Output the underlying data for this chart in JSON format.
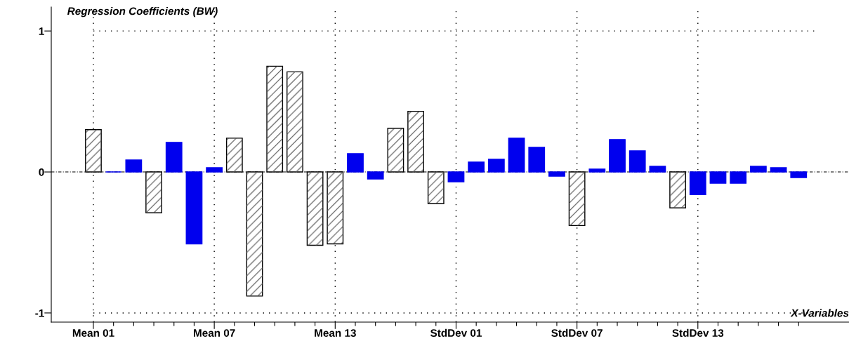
{
  "chart_data": {
    "type": "bar",
    "title": "Regression Coefficients (BW)",
    "xlabel": "X-Variables",
    "categories": [
      "Mean 01",
      null,
      null,
      null,
      null,
      null,
      "Mean 07",
      null,
      null,
      null,
      null,
      null,
      "Mean 13",
      null,
      null,
      null,
      null,
      null,
      "StdDev 01",
      null,
      null,
      null,
      null,
      null,
      "StdDev 07",
      null,
      null,
      null,
      null,
      null,
      "StdDev 13",
      null,
      null,
      null,
      null,
      null
    ],
    "values": [
      0.3,
      0.0,
      0.085,
      -0.29,
      0.21,
      -0.51,
      0.03,
      0.24,
      -0.88,
      0.75,
      0.71,
      -0.52,
      -0.51,
      0.13,
      -0.05,
      0.31,
      0.43,
      -0.225,
      -0.07,
      0.07,
      0.09,
      0.24,
      0.175,
      -0.03,
      -0.38,
      0.02,
      0.23,
      0.15,
      0.04,
      -0.255,
      -0.16,
      -0.08,
      -0.08,
      0.04,
      0.03,
      -0.04
    ],
    "colors": [
      "#ffffff",
      "#0000ee",
      "#0000ee",
      "#ffffff",
      "#0000ee",
      "#0000ee",
      "#0000ee",
      "#ffffff",
      "#ffffff",
      "#ffffff",
      "#ffffff",
      "#ffffff",
      "#ffffff",
      "#0000ee",
      "#0000ee",
      "#ffffff",
      "#ffffff",
      "#ffffff",
      "#0000ee",
      "#0000ee",
      "#0000ee",
      "#0000ee",
      "#0000ee",
      "#0000ee",
      "#ffffff",
      "#0000ee",
      "#0000ee",
      "#0000ee",
      "#0000ee",
      "#ffffff",
      "#0000ee",
      "#0000ee",
      "#0000ee",
      "#0000ee",
      "#0000ee",
      "#0000ee"
    ],
    "ylim": [
      -1.065,
      1.17
    ],
    "yticks": [
      {
        "value": -1,
        "label": "-1"
      },
      0,
      1
    ],
    "ref_lines": [
      {
        "axis": "y",
        "value": 0,
        "color": "#000000",
        "line_style": "dashed"
      }
    ],
    "grid": true
  }
}
